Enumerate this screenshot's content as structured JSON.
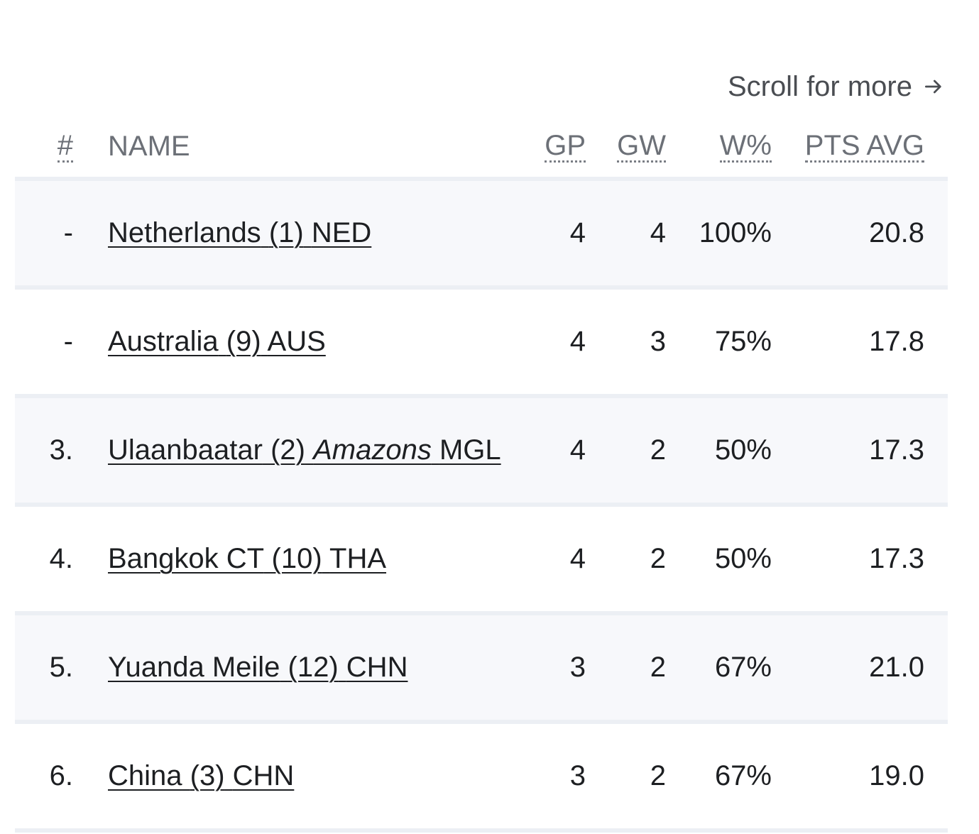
{
  "scroll_hint": {
    "label": "Scroll for more",
    "icon": "arrow-right-icon"
  },
  "table": {
    "headers": {
      "rank": "#",
      "name": "NAME",
      "gp": "GP",
      "gw": "GW",
      "wpct": "W%",
      "pts_avg": "PTS AVG"
    },
    "rows": [
      {
        "rank": "-",
        "team": "Netherlands",
        "seed": "(1)",
        "nickname": "",
        "country": "NED",
        "gp": "4",
        "gw": "4",
        "wpct": "100%",
        "pts_avg": "20.8"
      },
      {
        "rank": "-",
        "team": "Australia",
        "seed": "(9)",
        "nickname": "",
        "country": "AUS",
        "gp": "4",
        "gw": "3",
        "wpct": "75%",
        "pts_avg": "17.8"
      },
      {
        "rank": "3.",
        "team": "Ulaanbaatar",
        "seed": "(2)",
        "nickname": "Amazons",
        "country": "MGL",
        "gp": "4",
        "gw": "2",
        "wpct": "50%",
        "pts_avg": "17.3"
      },
      {
        "rank": "4.",
        "team": "Bangkok CT",
        "seed": "(10)",
        "nickname": "",
        "country": "THA",
        "gp": "4",
        "gw": "2",
        "wpct": "50%",
        "pts_avg": "17.3"
      },
      {
        "rank": "5.",
        "team": "Yuanda Meile",
        "seed": "(12)",
        "nickname": "",
        "country": "CHN",
        "gp": "3",
        "gw": "2",
        "wpct": "67%",
        "pts_avg": "21.0"
      },
      {
        "rank": "6.",
        "team": "China",
        "seed": "(3)",
        "nickname": "",
        "country": "CHN",
        "gp": "3",
        "gw": "2",
        "wpct": "67%",
        "pts_avg": "19.0"
      }
    ]
  },
  "colors": {
    "row_shade": "#f7f8fb",
    "row_divider": "#eceff4",
    "text": "#1d1f22",
    "header_text": "#6c7077"
  }
}
